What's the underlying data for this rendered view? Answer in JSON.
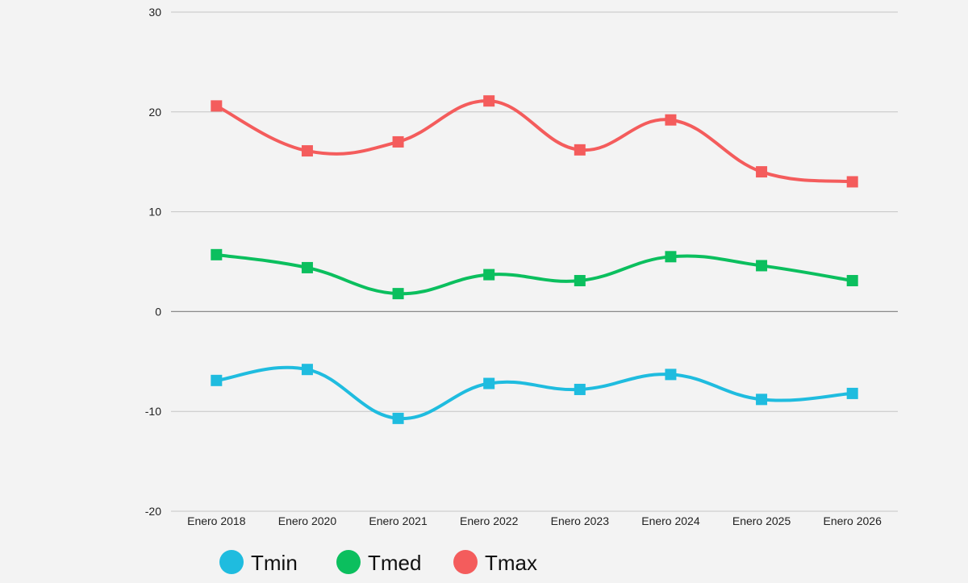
{
  "chart_data": {
    "type": "line",
    "categories": [
      "Enero 2018",
      "Enero 2020",
      "Enero 2021",
      "Enero 2022",
      "Enero 2023",
      "Enero 2024",
      "Enero 2025",
      "Enero 2026"
    ],
    "ylim": [
      -20,
      30
    ],
    "yticks": [
      -20,
      -10,
      0,
      10,
      20,
      30
    ],
    "grid": true,
    "legend_position": "bottom-left",
    "series": [
      {
        "name": "Tmin",
        "color": "#1fbcdf",
        "values": [
          -6.9,
          -5.8,
          -10.7,
          -7.2,
          -7.8,
          -6.3,
          -8.8,
          -8.2
        ]
      },
      {
        "name": "Tmed",
        "color": "#0bbf5e",
        "values": [
          5.7,
          4.4,
          1.8,
          3.7,
          3.1,
          5.5,
          4.6,
          3.1
        ]
      },
      {
        "name": "Tmax",
        "color": "#f45c5c",
        "values": [
          20.6,
          16.1,
          17.0,
          21.1,
          16.2,
          19.2,
          14.0,
          13.0
        ]
      }
    ]
  }
}
